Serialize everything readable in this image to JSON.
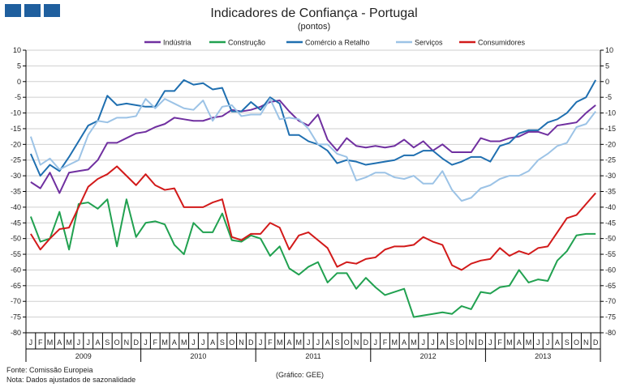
{
  "header": {
    "title": "Indicadores de Confiança - Portugal",
    "subtitle": "(pontos)"
  },
  "footer": {
    "source": "Fonte: Comissão Europeia",
    "note": "Nota: Dados ajustados de sazonalidade",
    "credit": "(Gráfico: GEE)"
  },
  "colors": {
    "logo": "#1f5f9e",
    "industria": "#7030a0",
    "construcao": "#21a150",
    "comercio": "#1f6fb0",
    "servicos": "#9cc3e6",
    "consumidores": "#d21a1a",
    "grid": "#cfcfcf",
    "axis": "#000000"
  },
  "chart_data": {
    "type": "line",
    "title": "Indicadores de Confiança - Portugal",
    "subtitle": "(pontos)",
    "ylim": [
      -80,
      10
    ],
    "yticks": [
      10,
      5,
      0,
      -5,
      -10,
      -15,
      -20,
      -25,
      -30,
      -35,
      -40,
      -45,
      -50,
      -55,
      -60,
      -65,
      -70,
      -75,
      -80
    ],
    "grid": "horizontal",
    "legend_position": "top",
    "month_labels": [
      "J",
      "F",
      "M",
      "A",
      "M",
      "J",
      "J",
      "A",
      "S",
      "O",
      "N",
      "D",
      "J",
      "F",
      "M",
      "A",
      "M",
      "J",
      "J",
      "A",
      "S",
      "O",
      "N",
      "D",
      "J",
      "F",
      "M",
      "A",
      "M",
      "J",
      "J",
      "A",
      "S",
      "O",
      "N",
      "D",
      "J",
      "F",
      "M",
      "A",
      "M",
      "J",
      "J",
      "A",
      "S",
      "O",
      "N",
      "D",
      "J",
      "F",
      "M",
      "A",
      "M",
      "J",
      "J",
      "A",
      "S",
      "O",
      "N",
      "D"
    ],
    "years": [
      "2009",
      "2010",
      "2011",
      "2012",
      "2013"
    ],
    "series": [
      {
        "name": "Indústria",
        "color": "#7030a0",
        "values": [
          -32,
          -34,
          -29,
          -35.5,
          -29,
          -28.5,
          -28,
          -25,
          -19.5,
          -19.5,
          -18,
          -16.5,
          -16,
          -14.5,
          -13.5,
          -11.5,
          -12,
          -12.5,
          -12.5,
          -11.5,
          -11,
          -9,
          -9.5,
          -9,
          -8,
          -6.5,
          -6,
          -9.5,
          -12.5,
          -14,
          -10.5,
          -18.5,
          -22,
          -18,
          -20.5,
          -21,
          -20.5,
          -21,
          -20.5,
          -18.5,
          -21,
          -19,
          -22,
          -20,
          -22.5,
          -22.5,
          -22.5,
          -18,
          -19,
          -19,
          -18,
          -17.5,
          -16,
          -16,
          -17,
          -14,
          -13.5,
          -13,
          -10,
          -7.5
        ]
      },
      {
        "name": "Construção",
        "color": "#21a150",
        "values": [
          -43,
          -51,
          -50,
          -41.5,
          -53.5,
          -39,
          -38.5,
          -40.5,
          -37.5,
          -52.5,
          -37.5,
          -49.5,
          -45,
          -44.5,
          -45.5,
          -52,
          -55,
          -45,
          -48,
          -48,
          -42,
          -50.5,
          -51,
          -49,
          -50,
          -55.5,
          -52.5,
          -59.5,
          -61.5,
          -59,
          -57.5,
          -64,
          -61,
          -61,
          -66,
          -62.5,
          -65.5,
          -68,
          -67,
          -66,
          -75,
          -74.5,
          -74,
          -73.5,
          -74,
          -71.5,
          -72.5,
          -67,
          -67.5,
          -65.5,
          -65,
          -60,
          -64,
          -63,
          -63.5,
          -57,
          -54,
          -49,
          -48.5,
          -48.5
        ]
      },
      {
        "name": "Comércio a Retalho",
        "color": "#1f6fb0",
        "values": [
          -23,
          -30,
          -26.5,
          -28.5,
          -24,
          -19,
          -14,
          -12.5,
          -4.5,
          -7.5,
          -7,
          -7.5,
          -8,
          -8,
          -3,
          -3,
          0.5,
          -1,
          -0.5,
          -2.5,
          -2,
          -9.5,
          -9.5,
          -6.5,
          -9,
          -5,
          -7,
          -17,
          -17,
          -19,
          -20,
          -22,
          -26,
          -25,
          -25.5,
          -26.5,
          -26,
          -25.5,
          -25,
          -23.5,
          -23.5,
          -22,
          -22,
          -24.5,
          -26.5,
          -25.5,
          -24,
          -24,
          -25.5,
          -20.5,
          -19.5,
          -16.5,
          -15.5,
          -15.5,
          -13,
          -12,
          -10,
          -6.5,
          -5,
          0.5
        ]
      },
      {
        "name": "Serviços",
        "color": "#9cc3e6",
        "values": [
          -17.5,
          -26.5,
          -24.5,
          -28,
          -26.5,
          -25,
          -17,
          -12.5,
          -13,
          -11.5,
          -11.5,
          -11,
          -5.5,
          -8.5,
          -5.5,
          -7,
          -8.5,
          -9,
          -6,
          -12.5,
          -8,
          -7.5,
          -11,
          -10.5,
          -10.5,
          -5.5,
          -12,
          -11.5,
          -12,
          -15,
          -20,
          -20,
          -23,
          -24,
          -31.5,
          -30.5,
          -29,
          -29,
          -30.5,
          -31,
          -30,
          -32.5,
          -32.5,
          -28.5,
          -34.5,
          -38,
          -37,
          -34,
          -33,
          -31,
          -30,
          -30,
          -28.5,
          -25,
          -23,
          -20.5,
          -19.5,
          -14.5,
          -13.5,
          -9.5
        ]
      },
      {
        "name": "Consumidores",
        "color": "#d21a1a",
        "values": [
          -48.5,
          -53.5,
          -50,
          -47,
          -46.5,
          -40,
          -33.5,
          -31,
          -29.5,
          -27,
          -30,
          -33,
          -29.5,
          -33,
          -34.5,
          -34,
          -40,
          -40,
          -40,
          -38.5,
          -37.5,
          -49.5,
          -50.5,
          -48.5,
          -48.5,
          -45,
          -46.5,
          -53.5,
          -49,
          -48,
          -50.5,
          -53,
          -59,
          -57.5,
          -58,
          -56.5,
          -56,
          -53.5,
          -52.5,
          -52.5,
          -52,
          -49.5,
          -51,
          -52,
          -58.5,
          -60,
          -58,
          -57,
          -56.5,
          -53,
          -55.5,
          -54,
          -55,
          -53,
          -52.5,
          -48,
          -43.5,
          -42.5,
          -39,
          -35.5
        ]
      }
    ]
  }
}
